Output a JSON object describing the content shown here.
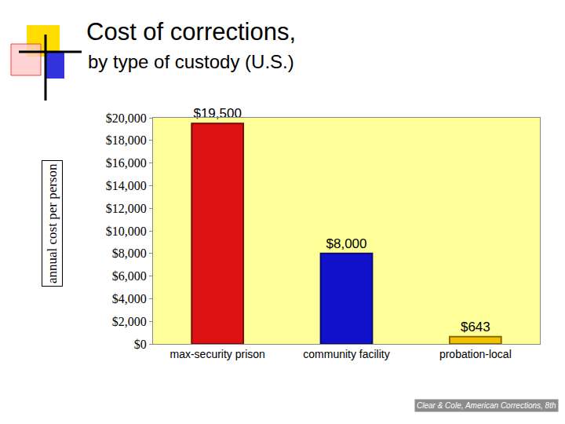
{
  "chart_data": {
    "type": "bar",
    "title": "Cost of corrections,",
    "subtitle": "by type of custody (U.S.)",
    "y_label": "annual cost per person",
    "categories": [
      "max-security prison",
      "community facility",
      "probation-local"
    ],
    "values": [
      19500,
      8000,
      643
    ],
    "value_labels": [
      "$19,500",
      "$8,000",
      "$643"
    ],
    "colors": [
      "#dd1111",
      "#1111cc",
      "#f2c200"
    ],
    "data_labels": true,
    "ylim": [
      0,
      20000
    ],
    "yticks": [
      {
        "value": 0,
        "label": "$0"
      },
      {
        "value": 2000,
        "label": "$2,000"
      },
      {
        "value": 4000,
        "label": "$4,000"
      },
      {
        "value": 6000,
        "label": "$6,000"
      },
      {
        "value": 8000,
        "label": "$8,000"
      },
      {
        "value": 10000,
        "label": "$10,000"
      },
      {
        "value": 12000,
        "label": "$12,000"
      },
      {
        "value": 14000,
        "label": "$14,000"
      },
      {
        "value": 16000,
        "label": "$16,000"
      },
      {
        "value": 18000,
        "label": "$18,000"
      },
      {
        "value": 20000,
        "label": "$20,000"
      }
    ],
    "grid": false,
    "annotations": [
      "Clear & Cole, American Corrections, 8th"
    ]
  }
}
